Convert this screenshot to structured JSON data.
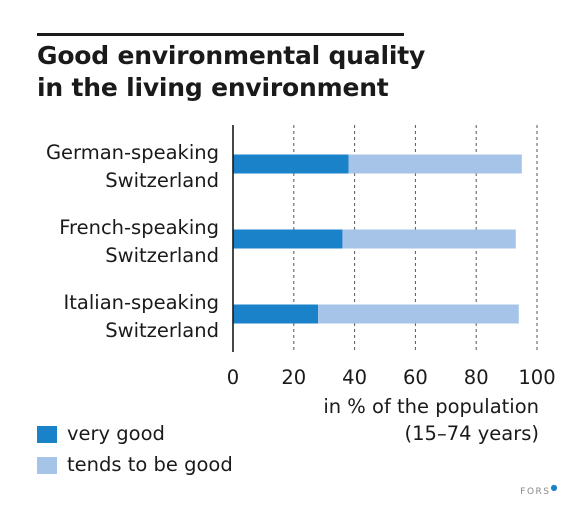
{
  "title_lines": [
    "Good environmental quality",
    "in the living environment"
  ],
  "brand": "FORS",
  "colors": {
    "very_good": "#1a82c8",
    "tends_to_be_good": "#a6c3e8",
    "text": "#1a1a1a",
    "grid": "#555555"
  },
  "chart_data": {
    "type": "bar",
    "orientation": "horizontal",
    "stacked": true,
    "categories": [
      [
        "German-speaking",
        "Switzerland"
      ],
      [
        "French-speaking",
        "Switzerland"
      ],
      [
        "Italian-speaking",
        "Switzerland"
      ]
    ],
    "series": [
      {
        "name": "very good",
        "values": [
          38,
          36,
          28
        ]
      },
      {
        "name": "tends to be good",
        "values": [
          57,
          57,
          66
        ]
      }
    ],
    "xlabel_lines": [
      "in % of the population",
      "(15–74 years)"
    ],
    "xlim": [
      0,
      100
    ],
    "xticks": [
      0,
      20,
      40,
      60,
      80,
      100
    ],
    "grid": "vertical-dashed",
    "legend_position": "bottom-left"
  }
}
